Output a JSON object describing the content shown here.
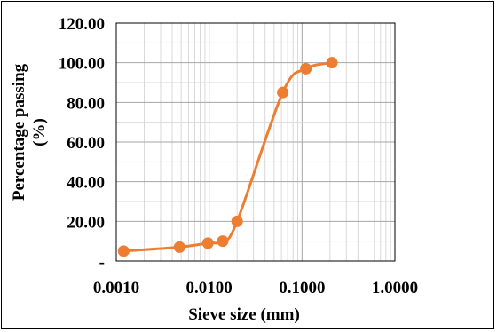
{
  "chart_data": {
    "type": "line",
    "title": "",
    "xlabel": "Sieve size (mm)",
    "ylabel": "Percentage passing",
    "ylabel_unit": "(%)",
    "x_scale": "log",
    "xlim": [
      0.001,
      1.0
    ],
    "ylim": [
      0,
      120
    ],
    "grid": true,
    "legend": "none",
    "x_tick_labels": [
      "0.0010",
      "0.0100",
      "0.1000",
      "1.0000"
    ],
    "y_tick_labels": [
      "-",
      "20.00",
      "40.00",
      "60.00",
      "80.00",
      "100.00",
      "120.00"
    ],
    "series": [
      {
        "color": "#ED7D31",
        "x": [
          0.0012,
          0.0048,
          0.0097,
          0.014,
          0.02,
          0.062,
          0.11,
          0.21
        ],
        "y": [
          5,
          7,
          9,
          10,
          20,
          85,
          97,
          100
        ]
      }
    ]
  }
}
